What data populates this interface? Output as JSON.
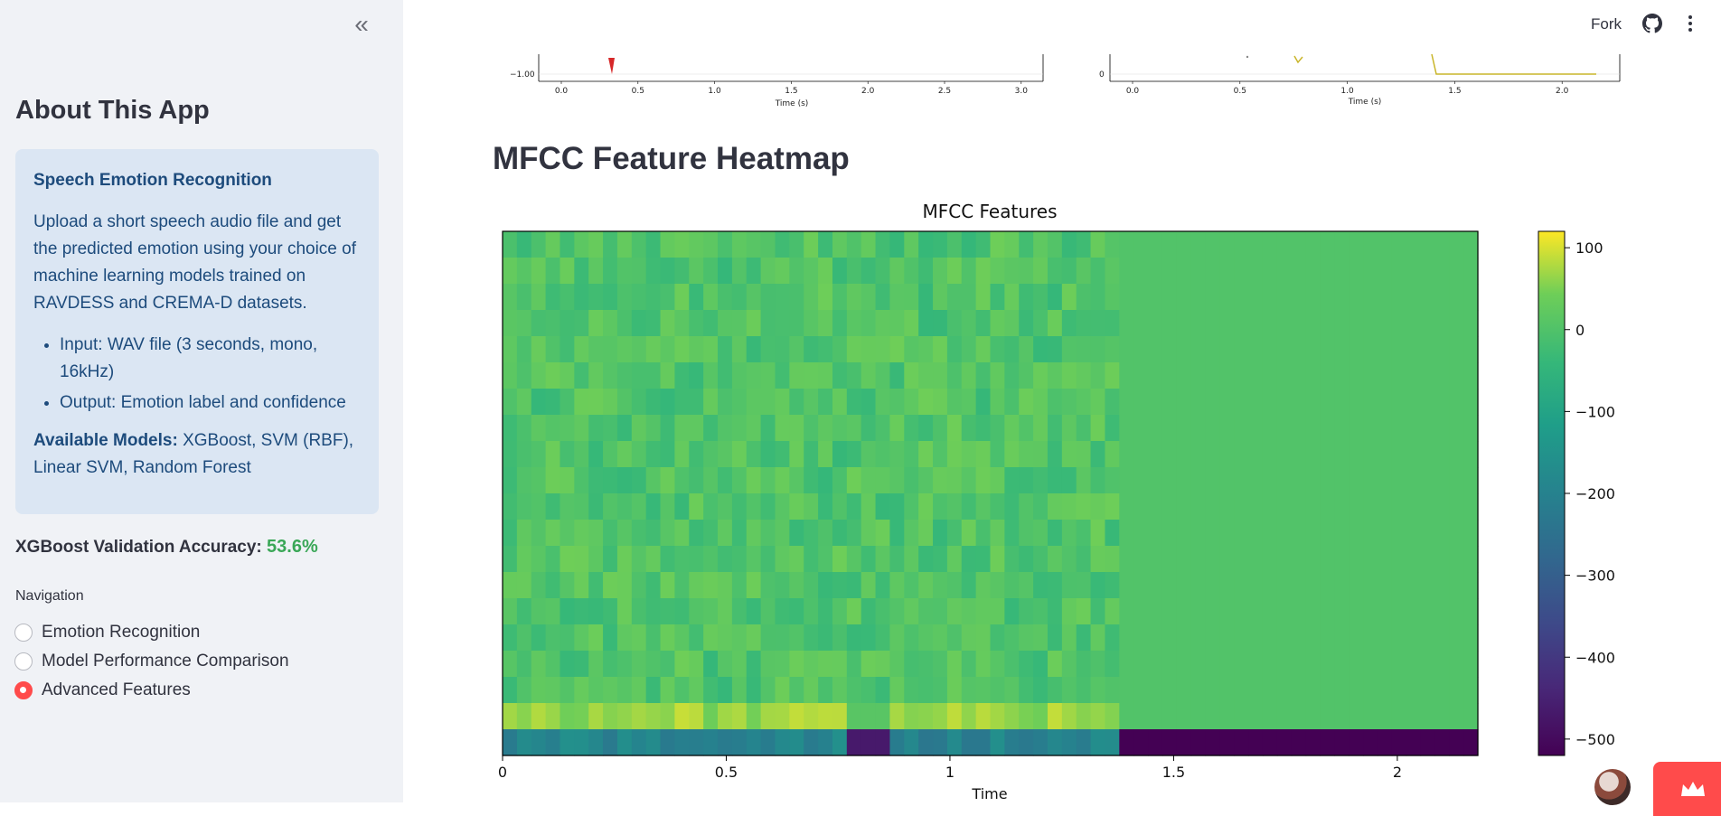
{
  "sidebar": {
    "collapse_label": "«",
    "about_title": "About This App",
    "info": {
      "heading": "Speech Emotion Recognition",
      "description": "Upload a short speech audio file and get the predicted emotion using your choice of machine learning models trained on RAVDESS and CREMA-D datasets.",
      "bullets": [
        "Input: WAV file (3 seconds, mono, 16kHz)",
        "Output: Emotion label and confidence"
      ],
      "models_label": "Available Models:",
      "models_value": " XGBoost, SVM (RBF), Linear SVM, Random Forest"
    },
    "accuracy_label": "XGBoost Validation Accuracy: ",
    "accuracy_value": "53.6%",
    "navigation_label": "Navigation",
    "nav_options": [
      {
        "label": "Emotion Recognition",
        "selected": false
      },
      {
        "label": "Model Performance Comparison",
        "selected": false
      },
      {
        "label": "Advanced Features",
        "selected": true
      }
    ]
  },
  "header": {
    "fork_label": "Fork",
    "icons": [
      "github-icon",
      "kebab-menu-icon"
    ]
  },
  "waveforms": {
    "left": {
      "xlabel": "Time (s)",
      "ticks": [
        "0.0",
        "0.5",
        "1.0",
        "1.5",
        "2.0",
        "2.5",
        "3.0"
      ],
      "ytick": "−1.00"
    },
    "right": {
      "xlabel": "Time (s)",
      "ticks": [
        "0.0",
        "0.5",
        "1.0",
        "1.5",
        "2.0"
      ],
      "ytick": "0"
    }
  },
  "main": {
    "section_title": "MFCC Feature Heatmap"
  },
  "chart_data": {
    "type": "heatmap",
    "title": "MFCC Features",
    "xlabel": "Time",
    "ylabel": "",
    "x_ticks": [
      "0",
      "0.5",
      "1",
      "1.5",
      "2"
    ],
    "x_range": [
      0,
      2.18
    ],
    "n_coefficients": 20,
    "active_until": 1.38,
    "colorbar": {
      "ticks": [
        "100",
        "0",
        "−100",
        "−200",
        "−300",
        "−400",
        "−500"
      ],
      "tick_values": [
        100,
        0,
        -100,
        -200,
        -300,
        -400,
        -500
      ],
      "range": [
        -520,
        120
      ],
      "colormap": "viridis"
    },
    "typical_values": {
      "coef0_active": -200,
      "coef0_silent": -520,
      "coef1_active": 75,
      "others": 0
    }
  },
  "colors": {
    "accent": "#ff4b4b",
    "success": "#3aa757",
    "info_bg": "#dbe6f3",
    "info_text": "#1d4b7c"
  }
}
